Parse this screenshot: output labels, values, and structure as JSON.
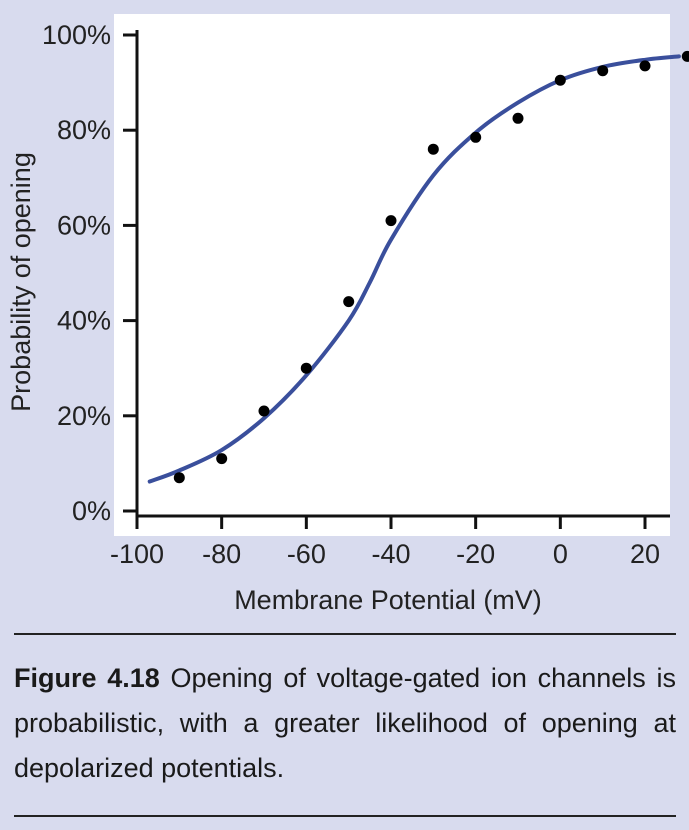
{
  "chart_data": {
    "type": "scatter",
    "title": "",
    "xlabel": "Membrane Potential (mV)",
    "ylabel": "Probability of opening",
    "xlim": [
      -100,
      35
    ],
    "ylim": [
      0,
      100
    ],
    "x_ticks": [
      -100,
      -80,
      -60,
      -40,
      -20,
      0,
      20
    ],
    "x_tick_labels": [
      "-100",
      "-80",
      "-60",
      "-40",
      "-20",
      "0",
      "20"
    ],
    "y_ticks": [
      0,
      20,
      40,
      60,
      80,
      100
    ],
    "y_tick_labels": [
      "0%",
      "20%",
      "40%",
      "60%",
      "80%",
      "100%"
    ],
    "grid": false,
    "series": [
      {
        "kind": "points",
        "color": "#000000",
        "x": [
          -90,
          -80,
          -70,
          -60,
          -50,
          -40,
          -30,
          -20,
          -10,
          0,
          10,
          20,
          30
        ],
        "y": [
          7,
          11,
          21,
          30,
          44,
          61,
          76,
          78.5,
          82.5,
          90.5,
          92.5,
          93.5,
          95.5
        ]
      },
      {
        "kind": "fit-curve",
        "color": "#3a4f9c",
        "x": [
          -97,
          -90,
          -80,
          -70,
          -60,
          -50,
          -45,
          -40,
          -30,
          -20,
          -10,
          0,
          10,
          20,
          28
        ],
        "y": [
          6.2,
          8.5,
          12.8,
          19.5,
          28.5,
          40,
          48,
          57,
          70.5,
          79.5,
          85.8,
          90.5,
          93.3,
          94.8,
          95.5
        ]
      }
    ]
  },
  "caption": {
    "label": "Figure 4.18",
    "text": "Opening of voltage-gated ion channels is probabilistic, with a greater likelihood of opening at depolarized potentials."
  }
}
